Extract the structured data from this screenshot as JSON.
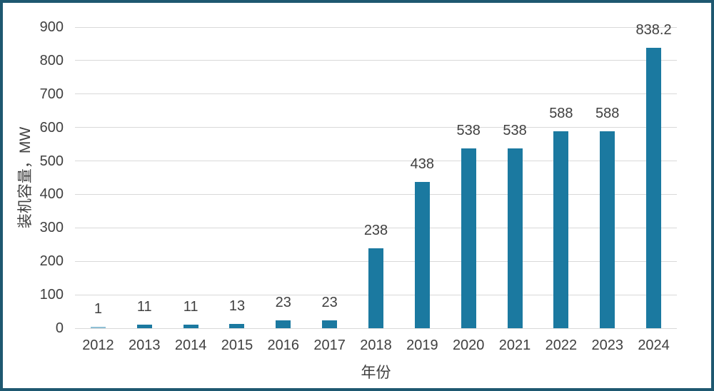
{
  "frame": {
    "border_color": "#1e5870",
    "background_color": "#ffffff"
  },
  "chart_data": {
    "type": "bar",
    "title": "",
    "xlabel": "年份",
    "ylabel": "装机容量，MW",
    "categories": [
      "2012",
      "2013",
      "2014",
      "2015",
      "2016",
      "2017",
      "2018",
      "2019",
      "2020",
      "2021",
      "2022",
      "2023",
      "2024"
    ],
    "values": [
      1,
      11,
      11,
      13,
      23,
      23,
      238,
      438,
      538,
      538,
      588,
      588,
      838.2
    ],
    "value_labels": [
      "1",
      "11",
      "11",
      "13",
      "23",
      "23",
      "238",
      "438",
      "538",
      "538",
      "588",
      "588",
      "838.2"
    ],
    "ylim": [
      0,
      900
    ],
    "ytick_step": 100,
    "ytick_labels": [
      "0",
      "100",
      "200",
      "300",
      "400",
      "500",
      "600",
      "700",
      "800",
      "900"
    ],
    "grid": true,
    "legend": "none",
    "bar_color": "#1b79a0",
    "tiny_bar_color": "#8fc0d5",
    "gridline_color": "#d9d9d9",
    "text_color": "#404040"
  }
}
